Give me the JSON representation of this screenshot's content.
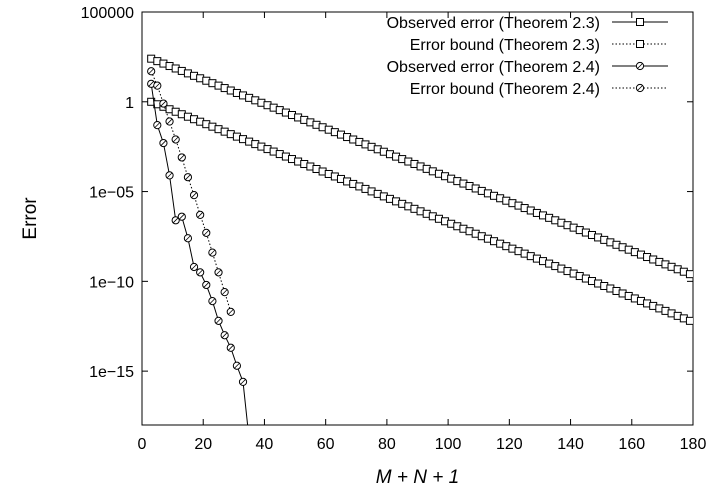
{
  "chart_data": {
    "type": "line",
    "title": "",
    "xlabel": "M + N + 1",
    "ylabel": "Error",
    "x_range": [
      0,
      180
    ],
    "y_range": [
      1e-18,
      100000
    ],
    "y_scale": "log",
    "x_ticks": [
      "0",
      "20",
      "40",
      "60",
      "80",
      "100",
      "120",
      "140",
      "160",
      "180"
    ],
    "y_ticks": [
      {
        "value": 100000,
        "label": "100000"
      },
      {
        "value": 1,
        "label": "1"
      },
      {
        "value": 1e-05,
        "label": "1e−05"
      },
      {
        "value": 1e-10,
        "label": "1e−10"
      },
      {
        "value": 1e-15,
        "label": "1e−15"
      }
    ],
    "grid": false,
    "legend_position": "top-right",
    "series": [
      {
        "name": "Observed error (Theorem 2.3)",
        "line": "solid",
        "marker": "square",
        "x_start": 3,
        "x_step": 2,
        "log10_first": 0.0,
        "log10_last": -12.2,
        "values_note": "geometric decay",
        "points": []
      },
      {
        "name": "Error bound (Theorem 2.3)",
        "line": "dotted",
        "marker": "square",
        "x_start": 3,
        "x_step": 2,
        "log10_first": 2.4,
        "log10_last": -9.6,
        "points": []
      },
      {
        "name": "Observed error (Theorem 2.4)",
        "line": "solid",
        "marker": "circle",
        "points": [
          [
            3,
            1.0
          ],
          [
            5,
            -1.3
          ],
          [
            7,
            -2.3
          ],
          [
            9,
            -4.1
          ],
          [
            11,
            -6.6
          ],
          [
            13,
            -6.4
          ],
          [
            15,
            -7.6
          ],
          [
            17,
            -9.2
          ],
          [
            19,
            -9.5
          ],
          [
            21,
            -10.2
          ],
          [
            23,
            -11.1
          ],
          [
            25,
            -12.2
          ],
          [
            27,
            -13.0
          ],
          [
            29,
            -13.7
          ],
          [
            31,
            -14.7
          ],
          [
            33,
            -15.6
          ],
          [
            34.5,
            -18
          ]
        ]
      },
      {
        "name": "Error bound (Theorem 2.4)",
        "line": "dotted",
        "marker": "circle",
        "points": [
          [
            3,
            1.7
          ],
          [
            5,
            0.9
          ],
          [
            7,
            -0.1
          ],
          [
            9,
            -1.1
          ],
          [
            11,
            -2.1
          ],
          [
            13,
            -3.1
          ],
          [
            15,
            -4.2
          ],
          [
            17,
            -5.2
          ],
          [
            19,
            -6.3
          ],
          [
            21,
            -7.3
          ],
          [
            23,
            -8.4
          ],
          [
            25,
            -9.5
          ],
          [
            27,
            -10.6
          ],
          [
            29,
            -11.7
          ]
        ]
      }
    ]
  }
}
